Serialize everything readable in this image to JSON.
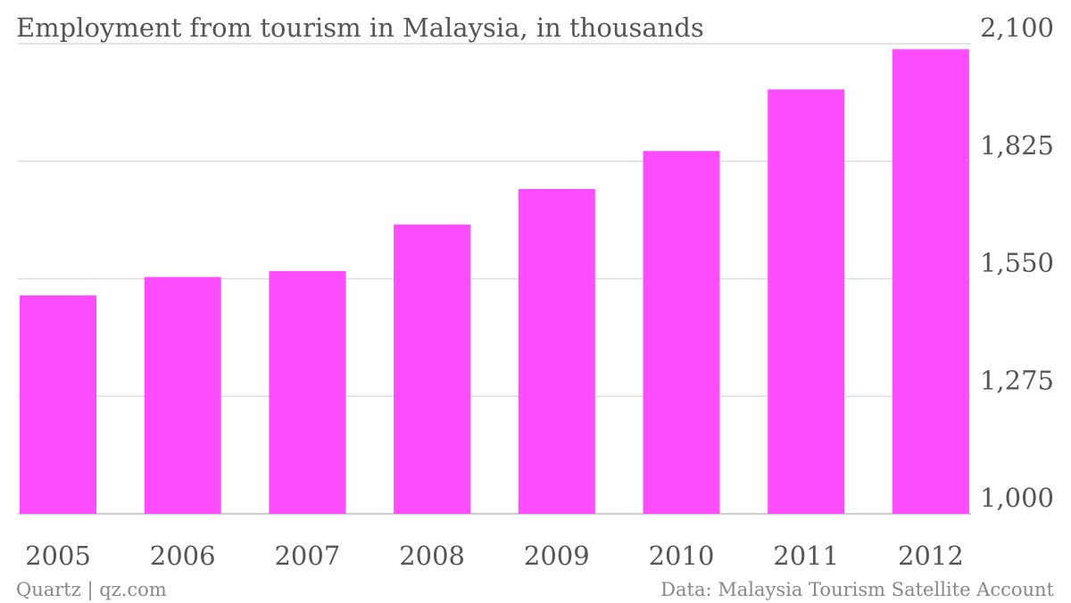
{
  "chart_data": {
    "type": "bar",
    "title": "Employment from tourism in Malaysia, in thousands",
    "xlabel": "",
    "ylabel": "",
    "categories": [
      "2005",
      "2006",
      "2007",
      "2008",
      "2009",
      "2010",
      "2011",
      "2012"
    ],
    "values": [
      1511,
      1554,
      1568,
      1677,
      1760,
      1849,
      1993,
      2087
    ],
    "ylim": [
      1000,
      2100
    ],
    "yticks": [
      1000,
      1275,
      1550,
      1825,
      2100
    ],
    "ytick_labels": [
      "1,000",
      "1,275",
      "1,550",
      "1,825",
      "2,100"
    ],
    "y_axis_side": "right",
    "grid": true,
    "legend": "none",
    "bar_color": "#ff4cff"
  },
  "footer": {
    "source_left": "Quartz | qz.com",
    "source_right": "Data: Malaysia Tourism Satellite Account"
  }
}
